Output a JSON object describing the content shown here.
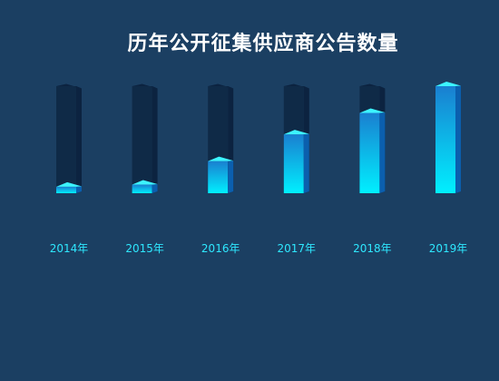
{
  "chart_data": {
    "type": "bar",
    "title": "历年公开征集供应商公告数量",
    "categories": [
      "2014年",
      "2015年",
      "2016年",
      "2017年",
      "2018年",
      "2019年"
    ],
    "values": [
      6,
      8,
      30,
      55,
      75,
      100
    ],
    "ylim": [
      0,
      100
    ],
    "xlabel": "",
    "ylabel": "",
    "grid": false,
    "legend": "none",
    "colors": {
      "background": "#1b3f62",
      "track": "#0f2a47",
      "bar_top": "#1a7fd0",
      "bar_bottom": "#00f0ff",
      "bar_cap": "#3cf4ff",
      "bar_side": "#0b5fae",
      "baseline": "#c8a030",
      "tick_label": "#2ee8ff",
      "title": "#ffffff"
    }
  }
}
